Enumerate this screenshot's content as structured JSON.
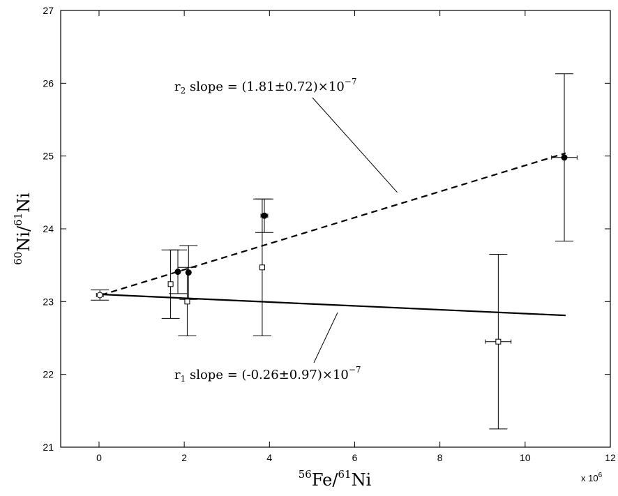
{
  "chart_data": {
    "type": "scatter",
    "xlabel": {
      "pre": "56",
      "a": "Fe/",
      "sup2": "61",
      "b": "Ni"
    },
    "ylabel": {
      "pre": "60",
      "a": "Ni/",
      "sup2": "61",
      "b": "Ni"
    },
    "x_multiplier": "x 10",
    "x_multiplier_exp": "6",
    "xlim": [
      -0.9,
      12
    ],
    "ylim": [
      21,
      27
    ],
    "xticks": [
      0,
      2,
      4,
      6,
      8,
      10,
      12
    ],
    "yticks": [
      21,
      22,
      23,
      24,
      25,
      26,
      27
    ],
    "xtick_labels": [
      "0",
      "2",
      "4",
      "6",
      "8",
      "10",
      "12"
    ],
    "ytick_labels": [
      "21",
      "22",
      "23",
      "24",
      "25",
      "26",
      "27"
    ],
    "grid": false,
    "series": [
      {
        "marker": "filled-circle",
        "points": [
          {
            "x": 1.85,
            "y": 23.41,
            "yerr": 0.3
          },
          {
            "x": 2.1,
            "y": 23.4,
            "yerr": 0.37
          },
          {
            "x": 3.88,
            "y": 24.18,
            "yerr": 0.23,
            "xerr": 0.08
          },
          {
            "x": 10.92,
            "y": 24.98,
            "yerr": 1.15,
            "xerr": 0.3
          }
        ]
      },
      {
        "marker": "open-square",
        "points": [
          {
            "x": 1.68,
            "y": 23.24,
            "yerr": 0.47
          },
          {
            "x": 2.07,
            "y": 23.0,
            "yerr": 0.47
          },
          {
            "x": 3.83,
            "y": 23.47,
            "yerr": 0.94
          },
          {
            "x": 9.37,
            "y": 22.45,
            "yerr": 1.2,
            "xerr": 0.3
          }
        ]
      },
      {
        "marker": "open-circle",
        "points": [
          {
            "x": 0.02,
            "y": 23.09,
            "yerr": 0.07,
            "xerr": 0.08
          }
        ]
      }
    ],
    "fits": [
      {
        "style": "dashed",
        "x": [
          0.05,
          10.95
        ],
        "y": [
          23.09,
          25.04
        ]
      },
      {
        "style": "solid",
        "x": [
          0,
          10.95
        ],
        "y": [
          23.1,
          22.81
        ]
      }
    ],
    "annotations": [
      {
        "label_r": "r",
        "label_sub": "2",
        "text": " slope = (1.81±0.72)×10",
        "exp": "−7",
        "target": {
          "x": 7.0,
          "y": 24.5
        }
      },
      {
        "label_r": "r",
        "label_sub": "1",
        "text": " slope = (-0.26±0.97)×10",
        "exp": "−7",
        "target": {
          "x": 5.6,
          "y": 22.85
        }
      }
    ]
  }
}
